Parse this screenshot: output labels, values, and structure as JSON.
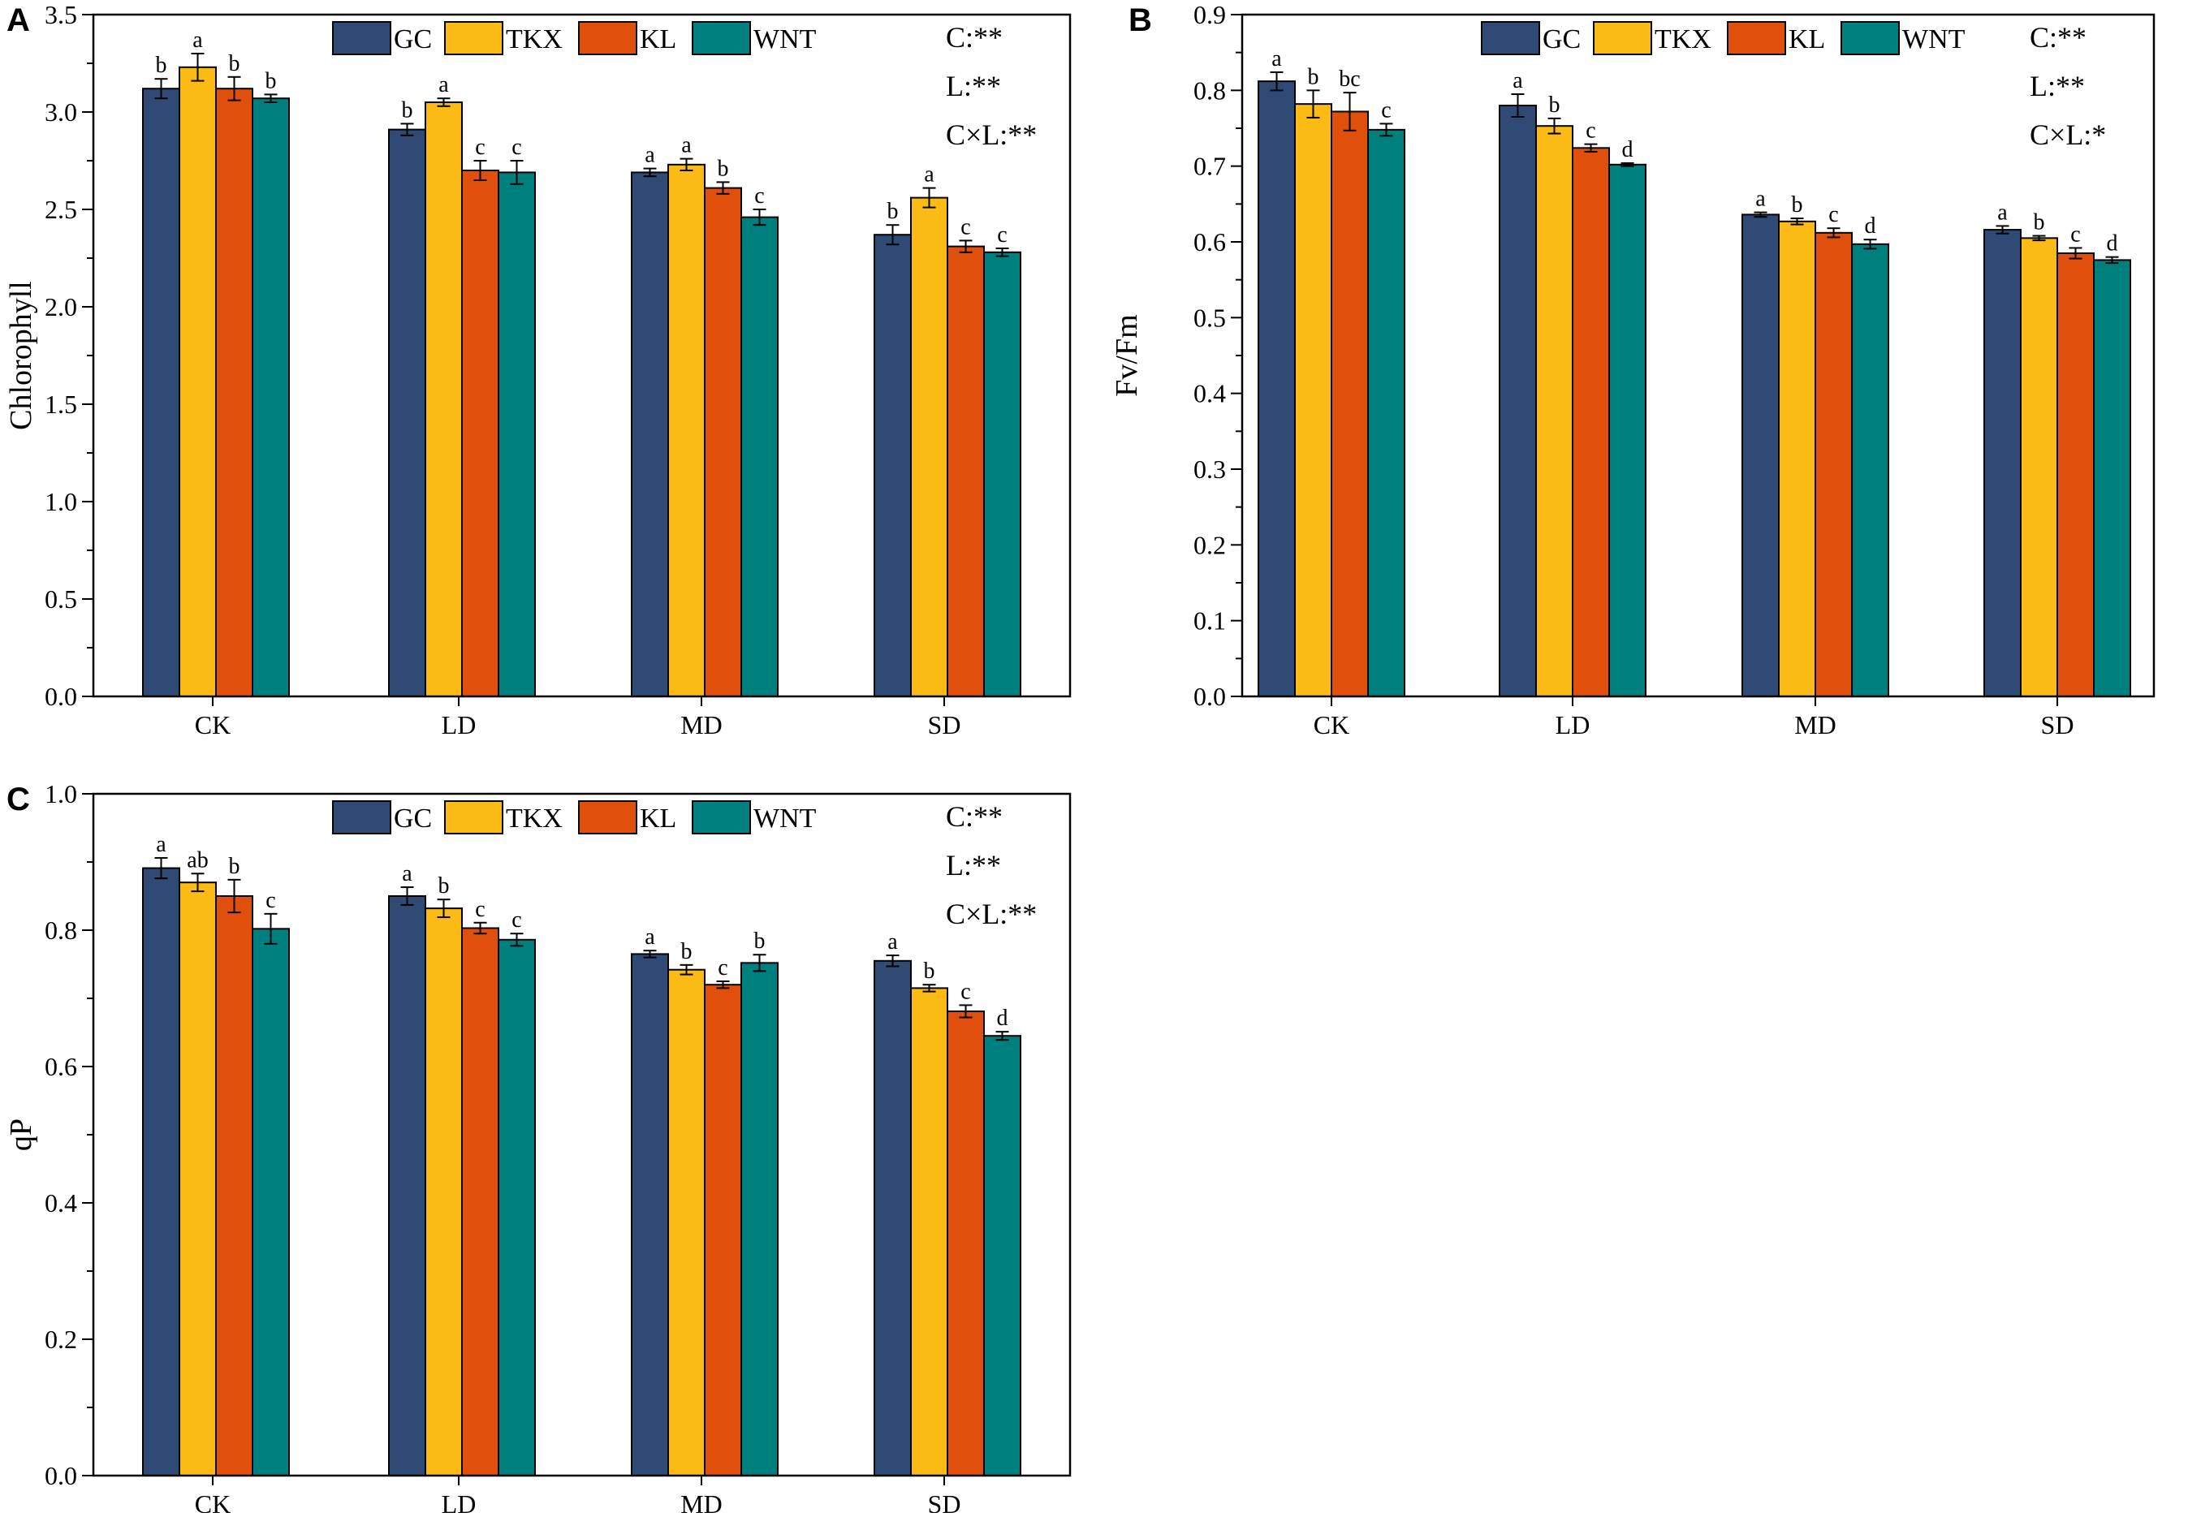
{
  "colors": {
    "GC": "#2e4a75",
    "TKX": "#fcbb14",
    "KL": "#e04f0c",
    "WNT": "#007f7f"
  },
  "chart_data": [
    {
      "type": "bar",
      "panel": "A",
      "ylabel": "Chlorophyll",
      "categories": [
        "CK",
        "LD",
        "MD",
        "SD"
      ],
      "ylim": [
        0,
        3.5
      ],
      "yticks": [
        "0.0",
        "0.5",
        "1.0",
        "1.5",
        "2.0",
        "2.5",
        "3.0",
        "3.5"
      ],
      "series": [
        {
          "name": "GC",
          "values": [
            3.12,
            2.91,
            2.69,
            2.37
          ],
          "errors": [
            0.05,
            0.03,
            0.02,
            0.05
          ],
          "letters": [
            "b",
            "b",
            "a",
            "b"
          ]
        },
        {
          "name": "TKX",
          "values": [
            3.23,
            3.05,
            2.73,
            2.56
          ],
          "errors": [
            0.07,
            0.02,
            0.03,
            0.05
          ],
          "letters": [
            "a",
            "a",
            "a",
            "a"
          ]
        },
        {
          "name": "KL",
          "values": [
            3.12,
            2.7,
            2.61,
            2.31
          ],
          "errors": [
            0.06,
            0.05,
            0.03,
            0.03
          ],
          "letters": [
            "b",
            "c",
            "b",
            "c"
          ]
        },
        {
          "name": "WNT",
          "values": [
            3.07,
            2.69,
            2.46,
            2.28
          ],
          "errors": [
            0.02,
            0.06,
            0.04,
            0.02
          ],
          "letters": [
            "b",
            "c",
            "c",
            "c"
          ]
        }
      ],
      "annotations": [
        "C:**",
        "L:**",
        "C×L:**"
      ]
    },
    {
      "type": "bar",
      "panel": "B",
      "ylabel": "Fv/Fm",
      "categories": [
        "CK",
        "LD",
        "MD",
        "SD"
      ],
      "ylim": [
        0,
        0.9
      ],
      "yticks": [
        "0.0",
        "0.1",
        "0.2",
        "0.3",
        "0.4",
        "0.5",
        "0.6",
        "0.7",
        "0.8",
        "0.9"
      ],
      "series": [
        {
          "name": "GC",
          "values": [
            0.812,
            0.78,
            0.636,
            0.616
          ],
          "errors": [
            0.012,
            0.015,
            0.003,
            0.005
          ],
          "letters": [
            "a",
            "a",
            "a",
            "a"
          ]
        },
        {
          "name": "TKX",
          "values": [
            0.782,
            0.753,
            0.627,
            0.605
          ],
          "errors": [
            0.018,
            0.01,
            0.004,
            0.003
          ],
          "letters": [
            "b",
            "b",
            "b",
            "b"
          ]
        },
        {
          "name": "KL",
          "values": [
            0.772,
            0.724,
            0.612,
            0.585
          ],
          "errors": [
            0.025,
            0.005,
            0.006,
            0.007
          ],
          "letters": [
            "bc",
            "c",
            "c",
            "c"
          ]
        },
        {
          "name": "WNT",
          "values": [
            0.748,
            0.702,
            0.597,
            0.576
          ],
          "errors": [
            0.008,
            0.002,
            0.006,
            0.004
          ],
          "letters": [
            "c",
            "d",
            "d",
            "d"
          ]
        }
      ],
      "annotations": [
        "C:**",
        "L:**",
        "C×L:*"
      ]
    },
    {
      "type": "bar",
      "panel": "C",
      "ylabel": "qP",
      "categories": [
        "CK",
        "LD",
        "MD",
        "SD"
      ],
      "ylim": [
        0,
        1.0
      ],
      "yticks": [
        "0.0",
        "0.2",
        "0.4",
        "0.6",
        "0.8",
        "1.0"
      ],
      "series": [
        {
          "name": "GC",
          "values": [
            0.891,
            0.85,
            0.765,
            0.755
          ],
          "errors": [
            0.015,
            0.013,
            0.005,
            0.008
          ],
          "letters": [
            "a",
            "a",
            "a",
            "a"
          ]
        },
        {
          "name": "TKX",
          "values": [
            0.87,
            0.832,
            0.742,
            0.715
          ],
          "errors": [
            0.013,
            0.013,
            0.007,
            0.005
          ],
          "letters": [
            "ab",
            "b",
            "b",
            "b"
          ]
        },
        {
          "name": "KL",
          "values": [
            0.85,
            0.803,
            0.72,
            0.681
          ],
          "errors": [
            0.024,
            0.008,
            0.005,
            0.009
          ],
          "letters": [
            "b",
            "c",
            "c",
            "c"
          ]
        },
        {
          "name": "WNT",
          "values": [
            0.802,
            0.786,
            0.752,
            0.645
          ],
          "errors": [
            0.022,
            0.009,
            0.012,
            0.006
          ],
          "letters": [
            "c",
            "c",
            "b",
            "d"
          ]
        }
      ],
      "annotations": [
        "C:**",
        "L:**",
        "C×L:**"
      ]
    }
  ]
}
